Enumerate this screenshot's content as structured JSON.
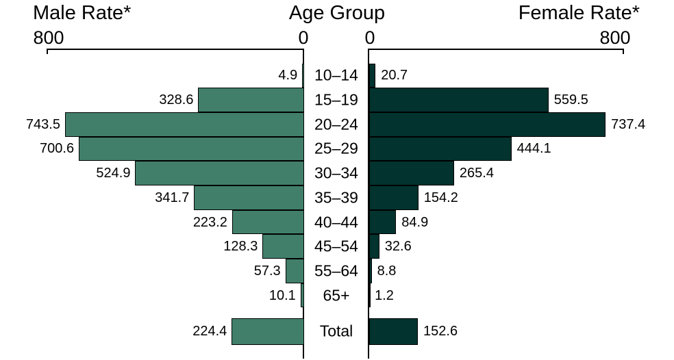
{
  "titles": {
    "male": "Male Rate*",
    "center": "Age Group",
    "female": "Female Rate*"
  },
  "axes": {
    "male": {
      "outer_label": "800",
      "zero_label": "0",
      "max": 800
    },
    "female": {
      "zero_label": "0",
      "outer_label": "800",
      "max": 800
    }
  },
  "colors": {
    "male_bar": "#417F6B",
    "female_bar": "#02332F",
    "bar_border": "#000000",
    "text": "#000000",
    "background": "#FFFFFF"
  },
  "chart_data": {
    "type": "bar",
    "subtype": "population-pyramid",
    "title": "",
    "center_label": "Age Group",
    "categories": [
      "10–14",
      "15–19",
      "20–24",
      "25–29",
      "30–34",
      "35–39",
      "40–44",
      "45–54",
      "55–64",
      "65+",
      "Total"
    ],
    "series": [
      {
        "name": "Male Rate*",
        "side": "left",
        "values": [
          4.9,
          328.6,
          743.5,
          700.6,
          524.9,
          341.7,
          223.2,
          128.3,
          57.3,
          10.1,
          224.4
        ]
      },
      {
        "name": "Female Rate*",
        "side": "right",
        "values": [
          20.7,
          559.5,
          737.4,
          444.1,
          265.4,
          154.2,
          84.9,
          32.6,
          8.8,
          1.2,
          152.6
        ]
      }
    ],
    "axis_range": [
      0,
      800
    ],
    "axis_ticks_shown": [
      800,
      0
    ],
    "grid": false,
    "legend": "none",
    "value_labels": "outside-bar-ends"
  }
}
